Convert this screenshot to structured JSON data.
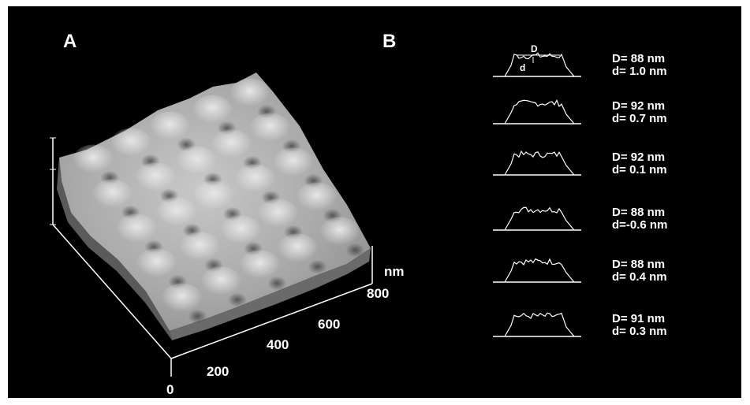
{
  "panels": {
    "a": {
      "label": "A",
      "axis": {
        "ticks": [
          "0",
          "200",
          "400",
          "600",
          "800"
        ],
        "unit": "nm"
      }
    },
    "b": {
      "label": "B",
      "annotation": {
        "width": "D",
        "depth": "d"
      },
      "profiles": [
        {
          "D": "D= 88 nm",
          "d": "d= 1.0 nm"
        },
        {
          "D": "D= 92 nm",
          "d": "d= 0.7 nm"
        },
        {
          "D": "D= 92 nm",
          "d": "d= 0.1 nm"
        },
        {
          "D": "D= 88 nm",
          "d": "d=-0.6 nm"
        },
        {
          "D": "D= 88 nm",
          "d": "d= 0.4 nm"
        },
        {
          "D": "D= 91 nm",
          "d": "d= 0.3 nm"
        }
      ]
    }
  }
}
